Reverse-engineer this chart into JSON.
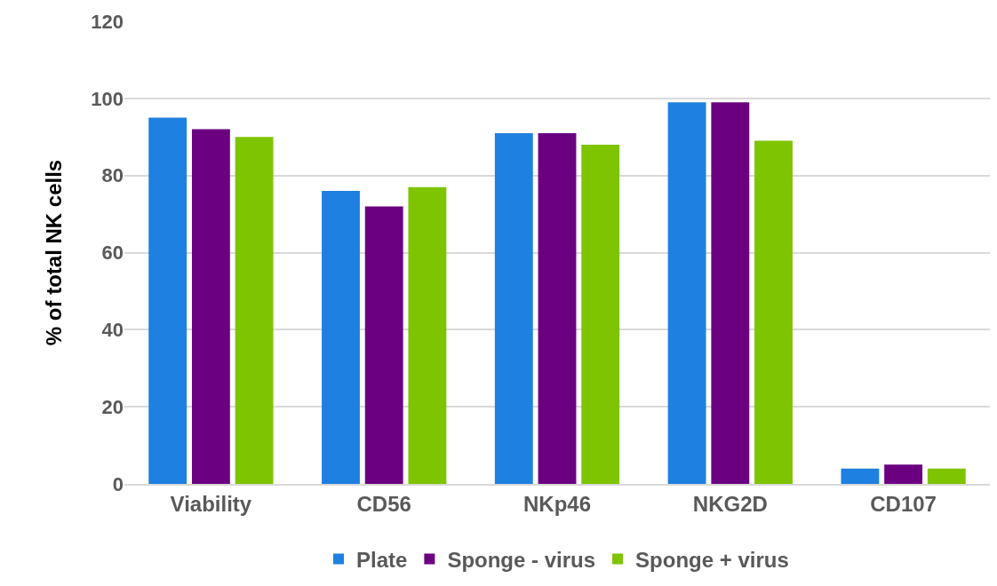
{
  "chart_data": {
    "type": "bar",
    "ylabel": "% of total NK cells",
    "categories": [
      "Viability",
      "CD56",
      "NKp46",
      "NKG2D",
      "CD107"
    ],
    "series": [
      {
        "name": "Plate",
        "color": "#1e80e0",
        "values": [
          95,
          76,
          91,
          99,
          4
        ]
      },
      {
        "name": "Sponge - virus",
        "color": "#6b0080",
        "values": [
          92,
          72,
          91,
          99,
          5
        ]
      },
      {
        "name": "Sponge + virus",
        "color": "#7ec400",
        "values": [
          90,
          77,
          88,
          89,
          4
        ]
      }
    ],
    "ylim": [
      0,
      120
    ],
    "yticks": [
      0,
      20,
      40,
      60,
      80,
      100,
      120
    ],
    "grid": "y",
    "legend": "bottom"
  }
}
